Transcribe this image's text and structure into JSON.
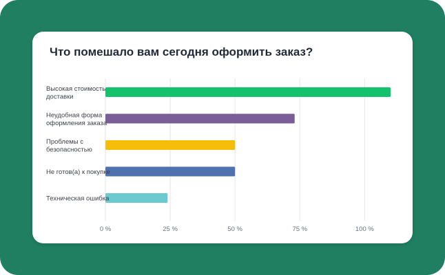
{
  "chart_data": {
    "type": "bar",
    "orientation": "horizontal",
    "title": "Что помешало вам сегодня оформить заказ?",
    "categories": [
      [
        "Высокая стоимость",
        "доставки"
      ],
      [
        "Неудобная форма",
        "оформления заказа"
      ],
      [
        "Проблемы с",
        "безопасностью"
      ],
      [
        "Не готов(а) к покупке"
      ],
      [
        "Техническая ошибка"
      ]
    ],
    "values": [
      110,
      73,
      50,
      50,
      24
    ],
    "colors": [
      "#13c26b",
      "#7b5d98",
      "#f7bd0b",
      "#4f71af",
      "#6cc9d0"
    ],
    "xlim": [
      0,
      110
    ],
    "ticks": [
      0,
      25,
      50,
      75,
      100
    ],
    "tick_labels": [
      "0 %",
      "25 %",
      "50 %",
      "75 %",
      "100 %"
    ],
    "grid": true,
    "legend": "none"
  }
}
